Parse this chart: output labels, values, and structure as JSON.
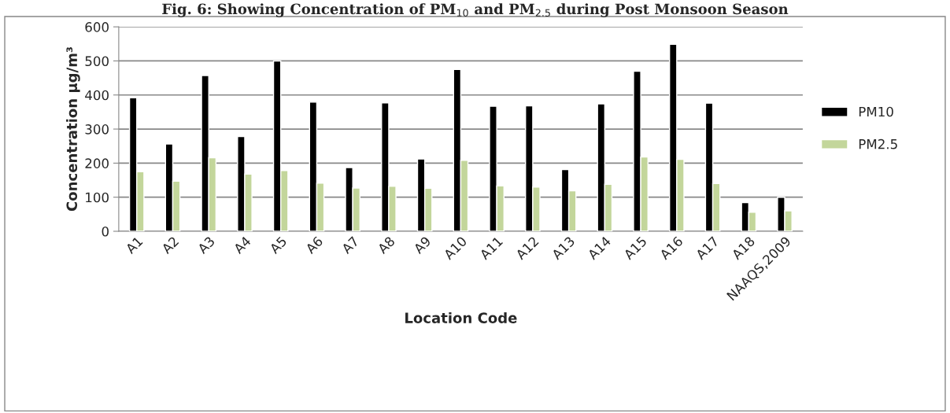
{
  "chart_data": {
    "type": "bar",
    "title": "Fig. 6: Showing Concentration of PM$_{10}$ and PM$_{2.5}$ during Post Monsoon Season",
    "xlabel": "Location Code",
    "ylabel": "Concentration µg/m³",
    "categories": [
      "A1",
      "A2",
      "A3",
      "A4",
      "A5",
      "A6",
      "A7",
      "A8",
      "A9",
      "A10",
      "A11",
      "A12",
      "A13",
      "A14",
      "A15",
      "A16",
      "A17",
      "A18",
      "NAAQS,2009"
    ],
    "series": [
      {
        "name": "PM10",
        "color": "#000000",
        "values": [
          392,
          256,
          457,
          278,
          500,
          379,
          187,
          377,
          212,
          475,
          367,
          368,
          181,
          374,
          470,
          549,
          376,
          84,
          100
        ]
      },
      {
        "name": "PM2.5",
        "color": "#c3d69b",
        "values": [
          175,
          147,
          216,
          168,
          178,
          141,
          127,
          132,
          126,
          208,
          133,
          130,
          119,
          138,
          218,
          211,
          140,
          56,
          60
        ]
      }
    ],
    "ylim": [
      0,
      600
    ],
    "yticks": [
      0,
      100,
      200,
      300,
      400,
      500,
      600
    ],
    "grid": "y",
    "legend": "right"
  }
}
